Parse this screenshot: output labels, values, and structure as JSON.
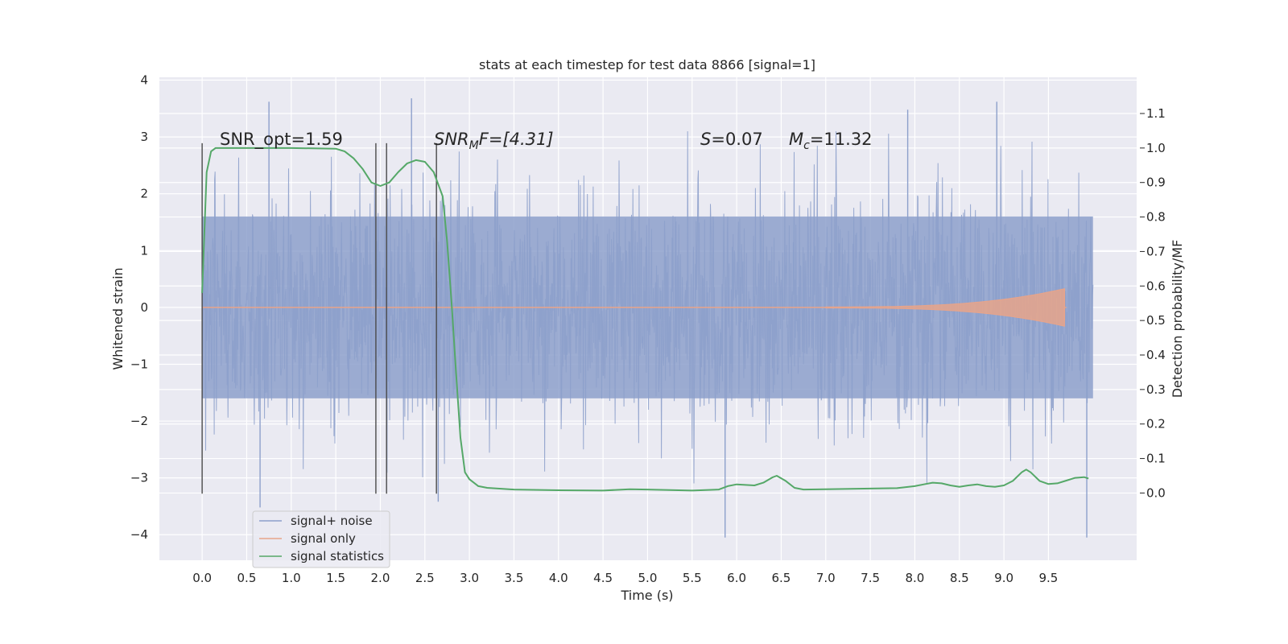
{
  "chart_data": {
    "type": "line",
    "title": "stats at each timestep for test data 8866 [signal=1]",
    "xlabel": "Time (s)",
    "ylabel": "Whitened strain",
    "ylabel_right": "Detection probability/MF",
    "xlim": [
      -0.48,
      10.49
    ],
    "ylim": [
      -4.45,
      4.05
    ],
    "ylim_right": [
      -0.195,
      1.205
    ],
    "x_ticks": [
      "0.0",
      "0.5",
      "1.0",
      "1.5",
      "2.0",
      "2.5",
      "3.0",
      "3.5",
      "4.0",
      "4.5",
      "5.0",
      "5.5",
      "6.0",
      "6.5",
      "7.0",
      "7.5",
      "8.0",
      "8.5",
      "9.0",
      "9.5"
    ],
    "y_ticks": [
      "4",
      "3",
      "2",
      "1",
      "0",
      "−1",
      "−2",
      "−3",
      "−4"
    ],
    "y_ticks_right": [
      "0.0",
      "0.1",
      "0.2",
      "0.3",
      "0.4",
      "0.5",
      "0.6",
      "0.7",
      "0.8",
      "0.9",
      "1.0",
      "1.1"
    ],
    "grid": true,
    "legend_position": "lower-left",
    "annotations": {
      "snr_opt": "SNR_opt=1.59",
      "snr_mf_prefix": "SNR",
      "snr_mf_sub": "M",
      "snr_mf_suffix": "F=[4.31]",
      "s_label": "S",
      "s_value": "=0.07",
      "mc_label": "M",
      "mc_sub": "c",
      "mc_value": "=11.32"
    },
    "vertical_markers_s": [
      0.0,
      1.95,
      2.07,
      2.63
    ],
    "series": [
      {
        "name": "signal+ noise",
        "color": "#8da0cb",
        "x_range": [
          0.0,
          10.0
        ],
        "envelope_dense": [
          -1.6,
          1.6
        ],
        "envelope_typical": [
          -2.5,
          2.5
        ],
        "peaks": [
          [
            0.75,
            3.62
          ],
          [
            2.35,
            3.68
          ],
          [
            7.92,
            3.48
          ],
          [
            8.92,
            3.62
          ],
          [
            0.65,
            -3.52
          ],
          [
            5.87,
            -4.05
          ],
          [
            9.93,
            -4.05
          ],
          [
            2.65,
            -3.42
          ]
        ]
      },
      {
        "name": "signal only",
        "color": "#e8a48a",
        "x_range": [
          0.0,
          9.7
        ],
        "chirp_start_s": 7.0,
        "chirp_peak_s": 9.68,
        "chirp_peak_amplitude": 0.32
      },
      {
        "name": "signal statistics",
        "color": "#55a868",
        "x": [
          0.0,
          0.05,
          0.1,
          0.15,
          0.2,
          0.3,
          0.5,
          1.0,
          1.5,
          1.6,
          1.7,
          1.8,
          1.9,
          2.0,
          2.1,
          2.2,
          2.3,
          2.4,
          2.5,
          2.6,
          2.7,
          2.75,
          2.8,
          2.85,
          2.9,
          2.95,
          3.0,
          3.1,
          3.2,
          3.5,
          4.0,
          4.5,
          4.8,
          5.0,
          5.5,
          5.8,
          5.9,
          6.0,
          6.2,
          6.3,
          6.4,
          6.45,
          6.55,
          6.65,
          6.75,
          7.0,
          7.5,
          7.8,
          8.0,
          8.1,
          8.2,
          8.3,
          8.4,
          8.5,
          8.6,
          8.7,
          8.8,
          8.9,
          9.0,
          9.1,
          9.2,
          9.25,
          9.3,
          9.4,
          9.5,
          9.6,
          9.7,
          9.8,
          9.9,
          9.95
        ],
        "values": [
          0.58,
          0.93,
          0.99,
          1.0,
          1.0,
          1.0,
          1.0,
          1.0,
          0.998,
          0.99,
          0.97,
          0.94,
          0.9,
          0.89,
          0.9,
          0.93,
          0.955,
          0.965,
          0.96,
          0.93,
          0.86,
          0.73,
          0.55,
          0.35,
          0.16,
          0.06,
          0.04,
          0.02,
          0.015,
          0.01,
          0.008,
          0.007,
          0.011,
          0.01,
          0.007,
          0.01,
          0.02,
          0.025,
          0.022,
          0.03,
          0.045,
          0.05,
          0.035,
          0.015,
          0.01,
          0.011,
          0.013,
          0.014,
          0.02,
          0.025,
          0.03,
          0.028,
          0.022,
          0.018,
          0.022,
          0.025,
          0.02,
          0.018,
          0.022,
          0.035,
          0.06,
          0.068,
          0.06,
          0.035,
          0.026,
          0.028,
          0.036,
          0.044,
          0.046,
          0.042
        ]
      }
    ]
  }
}
